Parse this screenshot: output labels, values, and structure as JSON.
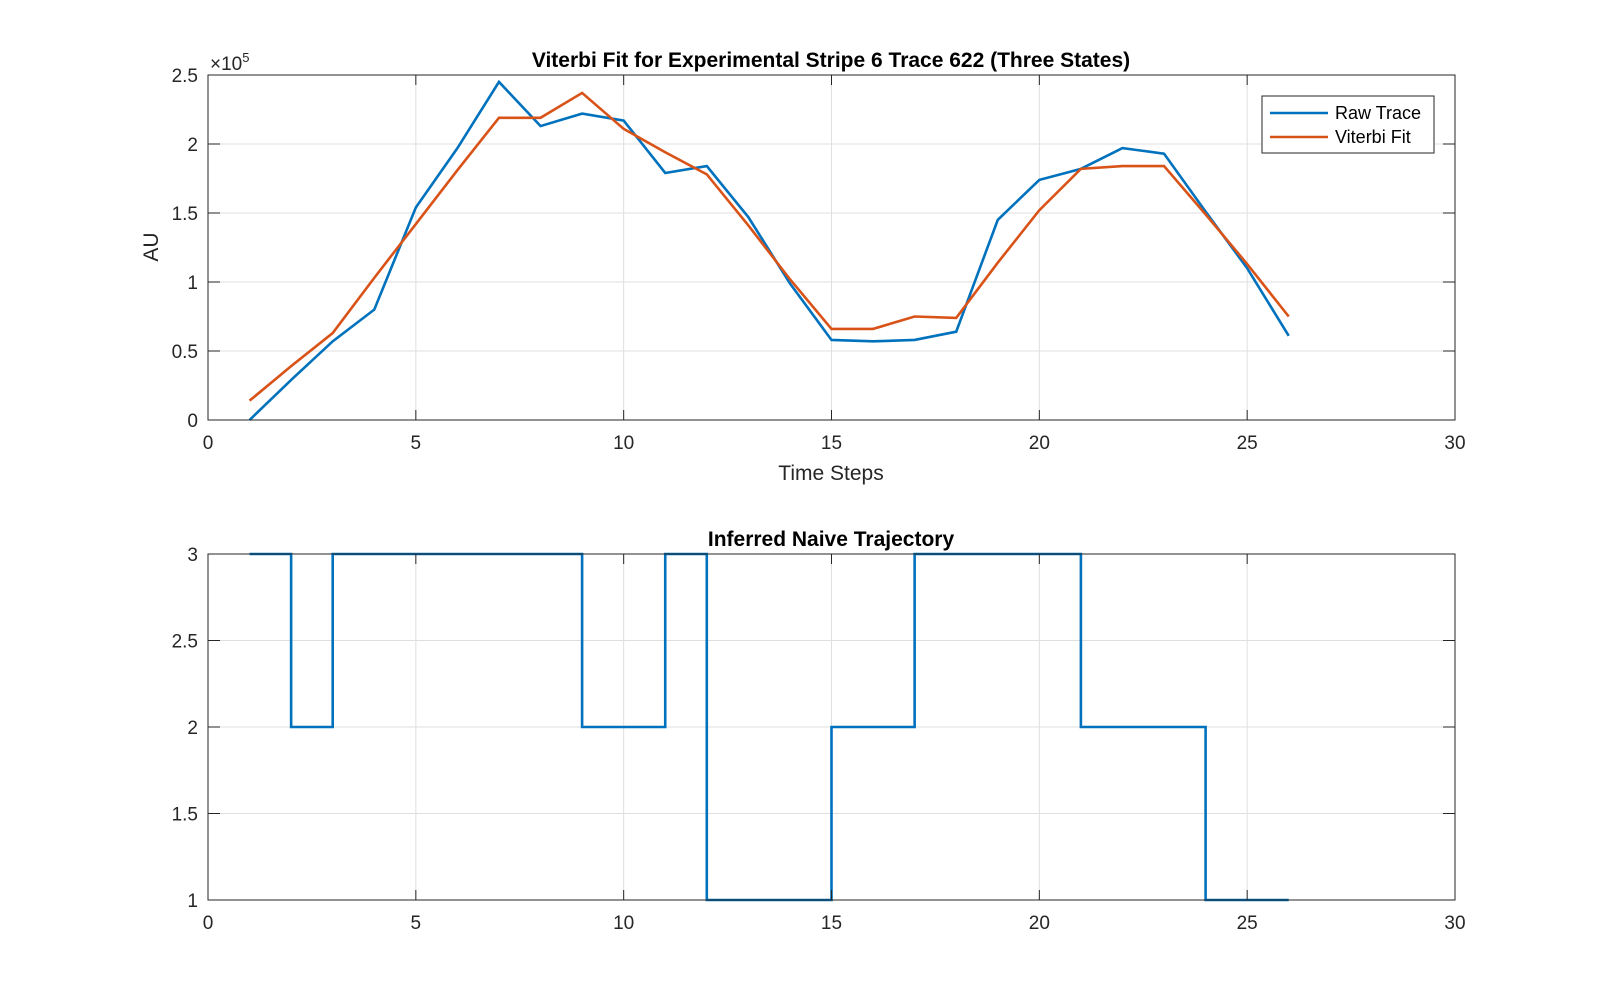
{
  "chart_data": [
    {
      "type": "line",
      "title": "Viterbi Fit for Experimental Stripe 6 Trace 622 (Three States)",
      "xlabel": "Time Steps",
      "ylabel": "AU",
      "y_exponent_label": "×10",
      "y_exponent_power": "5",
      "xlim": [
        0,
        30
      ],
      "ylim": [
        0,
        2.5
      ],
      "y_scale_factor": 100000,
      "xticks": [
        "0",
        "5",
        "10",
        "15",
        "20",
        "25",
        "30"
      ],
      "yticks": [
        "0",
        "0.5",
        "1",
        "1.5",
        "2",
        "2.5"
      ],
      "grid": true,
      "legend_position": "top-right",
      "x": [
        1,
        2,
        3,
        4,
        5,
        6,
        7,
        8,
        9,
        10,
        11,
        12,
        13,
        14,
        15,
        16,
        17,
        18,
        19,
        20,
        21,
        22,
        23,
        24,
        25,
        26
      ],
      "series": [
        {
          "name": "Raw Trace",
          "color": "#0072BD",
          "values": [
            0,
            0.29,
            0.57,
            0.8,
            1.54,
            1.97,
            2.45,
            2.13,
            2.22,
            2.17,
            1.79,
            1.84,
            1.47,
            0.99,
            0.58,
            0.57,
            0.58,
            0.64,
            1.45,
            1.74,
            1.82,
            1.97,
            1.93,
            1.51,
            1.1,
            0.61
          ]
        },
        {
          "name": "Viterbi Fit",
          "color": "#D95319",
          "values": [
            0.14,
            0.39,
            0.63,
            1.03,
            1.42,
            1.81,
            2.19,
            2.19,
            2.37,
            2.11,
            1.94,
            1.78,
            1.41,
            1.02,
            0.66,
            0.66,
            0.75,
            0.74,
            1.14,
            1.52,
            1.82,
            1.84,
            1.84,
            1.49,
            1.13,
            0.75
          ]
        }
      ]
    },
    {
      "type": "line",
      "title": "Inferred Naive Trajectory",
      "xlabel": "",
      "ylabel": "",
      "xlim": [
        0,
        30
      ],
      "ylim": [
        1,
        3
      ],
      "xticks": [
        "0",
        "5",
        "10",
        "15",
        "20",
        "25",
        "30"
      ],
      "yticks": [
        "1",
        "1.5",
        "2",
        "2.5",
        "3"
      ],
      "grid": true,
      "step": true,
      "x": [
        1,
        2,
        3,
        4,
        5,
        6,
        7,
        8,
        9,
        10,
        11,
        12,
        13,
        14,
        15,
        16,
        17,
        18,
        19,
        20,
        21,
        22,
        23,
        24,
        25,
        26
      ],
      "series": [
        {
          "color": "#0072BD",
          "values": [
            3,
            2,
            3,
            3,
            3,
            3,
            3,
            3,
            2,
            2,
            3,
            1,
            1,
            1,
            2,
            2,
            3,
            3,
            3,
            3,
            2,
            2,
            2,
            1,
            1,
            1
          ]
        }
      ]
    }
  ]
}
